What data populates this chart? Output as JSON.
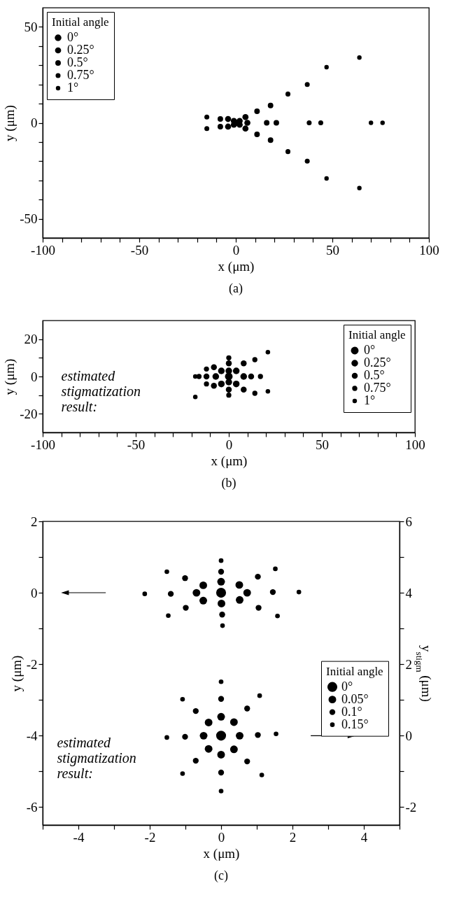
{
  "chart_data": [
    {
      "type": "bubble",
      "title": "(a)",
      "xlabel": "x (μm)",
      "ylabel": "y (μm)",
      "legend_title": "Initial angle",
      "legend": "top left",
      "marker": "circle",
      "xlim": [
        -100,
        100
      ],
      "xticks": [
        -100,
        {
          "value": -90,
          "label": null
        },
        {
          "value": -80,
          "label": null
        },
        {
          "value": -70,
          "label": null
        },
        {
          "value": -60,
          "label": null
        },
        -50,
        {
          "value": -40,
          "label": null
        },
        {
          "value": -30,
          "label": null
        },
        {
          "value": -20,
          "label": null
        },
        {
          "value": -10,
          "label": null
        },
        0,
        {
          "value": 10,
          "label": null
        },
        {
          "value": 20,
          "label": null
        },
        {
          "value": 30,
          "label": null
        },
        {
          "value": 40,
          "label": null
        },
        50,
        {
          "value": 60,
          "label": null
        },
        {
          "value": 70,
          "label": null
        },
        {
          "value": 80,
          "label": null
        },
        {
          "value": 90,
          "label": null
        },
        100
      ],
      "ylim": [
        -60,
        60
      ],
      "yticks": [
        -50,
        {
          "value": -40,
          "label": null
        },
        {
          "value": -30,
          "label": null
        },
        {
          "value": -20,
          "label": null
        },
        {
          "value": -10,
          "label": null
        },
        0,
        {
          "value": 10,
          "label": null
        },
        {
          "value": 20,
          "label": null
        },
        {
          "value": 30,
          "label": null
        },
        {
          "value": 40,
          "label": null
        },
        50
      ],
      "series": [
        {
          "name": "0°",
          "color": "#000000",
          "x": [
            0
          ],
          "values": [
            0
          ],
          "sizes": [
            1
          ]
        },
        {
          "name": "0.25°",
          "color": "#000000",
          "x": [
            -1,
            -1,
            2,
            2,
            -4,
            -4,
            5,
            5,
            6
          ],
          "values": [
            1,
            -1,
            1,
            -1,
            2,
            -2,
            3,
            -3,
            0
          ],
          "sizes": [
            0.85,
            0.85,
            0.85,
            0.85,
            0.85,
            0.85,
            0.85,
            0.85,
            0.85
          ]
        },
        {
          "name": "0.5°",
          "color": "#000000",
          "x": [
            -8,
            -8,
            11,
            11,
            18,
            18,
            16,
            21
          ],
          "values": [
            2,
            -2,
            6,
            -6,
            9,
            -9,
            0,
            0
          ],
          "sizes": [
            0.7,
            0.7,
            0.7,
            0.7,
            0.7,
            0.7,
            0.7,
            0.7
          ]
        },
        {
          "name": "0.75°",
          "color": "#000000",
          "x": [
            -15,
            -15,
            27,
            27,
            37,
            37,
            38,
            44
          ],
          "values": [
            3,
            -3,
            15,
            -15,
            20,
            -20,
            0,
            0
          ],
          "sizes": [
            0.55,
            0.55,
            0.55,
            0.55,
            0.55,
            0.55,
            0.55,
            0.55
          ]
        },
        {
          "name": "1°",
          "color": "#000000",
          "x": [
            47,
            47,
            64,
            64,
            70,
            76
          ],
          "values": [
            29,
            -29,
            34,
            -34,
            0,
            0
          ],
          "sizes": [
            0.45,
            0.45,
            0.45,
            0.45,
            0.45,
            0.45
          ]
        }
      ]
    },
    {
      "type": "bubble",
      "title": "(b)",
      "xlabel": "x (μm)",
      "ylabel": "y (μm)",
      "legend_title": "Initial angle",
      "legend": "top right",
      "marker": "circle",
      "annotations": [
        "estimated\nstigmatization\nresult:"
      ],
      "xlim": [
        -100,
        100
      ],
      "xticks": [
        -100,
        {
          "value": -90,
          "label": null
        },
        {
          "value": -80,
          "label": null
        },
        {
          "value": -70,
          "label": null
        },
        {
          "value": -60,
          "label": null
        },
        -50,
        {
          "value": -40,
          "label": null
        },
        {
          "value": -30,
          "label": null
        },
        {
          "value": -20,
          "label": null
        },
        {
          "value": -10,
          "label": null
        },
        0,
        {
          "value": 10,
          "label": null
        },
        {
          "value": 20,
          "label": null
        },
        {
          "value": 30,
          "label": null
        },
        {
          "value": 40,
          "label": null
        },
        50,
        {
          "value": 60,
          "label": null
        },
        {
          "value": 70,
          "label": null
        },
        {
          "value": 80,
          "label": null
        },
        {
          "value": 90,
          "label": null
        },
        100
      ],
      "ylim": [
        -30,
        30
      ],
      "yticks": [
        -20,
        {
          "value": -10,
          "label": null
        },
        0,
        {
          "value": 10,
          "label": null
        },
        20
      ],
      "series": [
        {
          "name": "0°",
          "color": "#000000",
          "x": [
            0
          ],
          "values": [
            0
          ],
          "sizes": [
            1
          ]
        },
        {
          "name": "0.25°",
          "color": "#000000",
          "x": [
            -4,
            4,
            -4,
            4,
            -7,
            8,
            0,
            0
          ],
          "values": [
            3,
            3,
            -4,
            -4,
            0,
            0,
            3,
            -3
          ],
          "sizes": [
            0.75,
            0.75,
            0.75,
            0.75,
            0.75,
            0.75,
            0.75,
            0.75
          ]
        },
        {
          "name": "0.5°",
          "color": "#000000",
          "x": [
            0,
            0,
            -8,
            -8,
            8,
            8,
            -12,
            12
          ],
          "values": [
            7,
            -7,
            5,
            -5,
            7,
            -7,
            0,
            0
          ],
          "sizes": [
            0.6,
            0.6,
            0.6,
            0.6,
            0.6,
            0.6,
            0.6,
            0.6
          ]
        },
        {
          "name": "0.75°",
          "color": "#000000",
          "x": [
            0,
            0,
            -16,
            17,
            14,
            14,
            -12,
            -12
          ],
          "values": [
            10,
            -10,
            0,
            0,
            9,
            -9,
            4,
            -4
          ],
          "sizes": [
            0.45,
            0.45,
            0.45,
            0.45,
            0.45,
            0.45,
            0.45,
            0.45
          ]
        },
        {
          "name": "1°",
          "color": "#000000",
          "x": [
            -18,
            21,
            21,
            -18
          ],
          "values": [
            0,
            13,
            -8,
            -11
          ],
          "sizes": [
            0.35,
            0.35,
            0.35,
            0.35
          ]
        }
      ]
    },
    {
      "type": "bubble",
      "title": "(c)",
      "xlabel": "x (μm)",
      "ylabel": "y (μm)",
      "y2label": "y$_{stigm}$ (μm)",
      "legend_title": "Initial angle",
      "legend": "right",
      "marker": "circle",
      "annotations": [
        "estimated\nstigmatization\nresult:"
      ],
      "xlim": [
        -5,
        5
      ],
      "xticks": [
        {
          "value": -5,
          "label": null
        },
        -4,
        {
          "value": -3,
          "label": null
        },
        -2,
        {
          "value": -1,
          "label": null
        },
        0,
        {
          "value": 1,
          "label": null
        },
        2,
        {
          "value": 3,
          "label": null
        },
        4,
        {
          "value": 5,
          "label": null
        }
      ],
      "ylim": [
        -6.5,
        2
      ],
      "yticks": [
        -6,
        {
          "value": -5,
          "label": null
        },
        -4,
        {
          "value": -3,
          "label": null
        },
        -2,
        {
          "value": -1,
          "label": null
        },
        0,
        {
          "value": 1,
          "label": null
        },
        2
      ],
      "y2lim": [
        -2.5,
        6
      ],
      "y2ticks": [
        -2,
        {
          "value": -1,
          "label": null
        },
        0,
        {
          "value": 1,
          "label": null
        },
        2,
        {
          "value": 3,
          "label": null
        },
        4,
        {
          "value": 5,
          "label": null
        },
        6
      ],
      "series": [
        {
          "name": "0°",
          "color": "#000000",
          "x": [
            0
          ],
          "values": [
            0
          ],
          "sizes": [
            1
          ]
        },
        {
          "name": "0.05°",
          "color": "#000000",
          "x": [
            -0.5,
            0.51,
            -0.5,
            0.52,
            -0.69,
            0.73,
            0,
            0.01
          ],
          "values": [
            0.21,
            0.22,
            -0.22,
            -0.2,
            0,
            0,
            0.31,
            -0.3
          ],
          "sizes": [
            0.6,
            0.6,
            0.6,
            0.6,
            0.6,
            0.6,
            0.6,
            0.6
          ]
        },
        {
          "name": "0.1°",
          "color": "#000000",
          "x": [
            -1.01,
            1.03,
            -0.99,
            1.05,
            -1.41,
            1.45,
            0,
            0.03
          ],
          "values": [
            0.41,
            0.45,
            -0.42,
            -0.42,
            -0.03,
            0.02,
            0.59,
            -0.61
          ],
          "sizes": [
            0.35,
            0.35,
            0.35,
            0.35,
            0.35,
            0.35,
            0.35,
            0.35
          ]
        },
        {
          "name": "0.15°",
          "color": "#000000",
          "x": [
            -1.52,
            1.52,
            -1.48,
            1.58,
            -2.14,
            2.18,
            0,
            0.04
          ],
          "values": [
            0.59,
            0.67,
            -0.64,
            -0.65,
            -0.03,
            0.02,
            0.9,
            -0.92
          ],
          "sizes": [
            0.22,
            0.22,
            0.22,
            0.22,
            0.22,
            0.22,
            0.22,
            0.22
          ]
        },
        {
          "axis": "y2",
          "color": "#000000",
          "x": [
            0
          ],
          "values": [
            0
          ],
          "sizes": [
            1
          ]
        },
        {
          "axis": "y2",
          "color": "#000000",
          "x": [
            -0.35,
            0.36,
            -0.49,
            0.52,
            0,
            0,
            -0.35,
            0.36
          ],
          "values": [
            0.37,
            0.38,
            0,
            0,
            0.53,
            -0.53,
            -0.37,
            -0.38
          ],
          "sizes": [
            0.6,
            0.6,
            0.6,
            0.6,
            0.6,
            0.6,
            0.6,
            0.6
          ]
        },
        {
          "axis": "y2",
          "color": "#000000",
          "x": [
            -0.71,
            0.73,
            -1.01,
            1.03,
            0,
            0,
            -0.71,
            0.73
          ],
          "values": [
            0.69,
            0.76,
            -0.03,
            0.02,
            1.03,
            -1.03,
            -0.7,
            -0.72
          ],
          "sizes": [
            0.35,
            0.35,
            0.35,
            0.35,
            0.35,
            0.35,
            0.35,
            0.35
          ]
        },
        {
          "axis": "y2",
          "color": "#000000",
          "x": [
            -1.08,
            1.08,
            -1.52,
            1.54,
            0,
            0,
            -1.08,
            1.14
          ],
          "values": [
            1.02,
            1.12,
            -0.05,
            0.05,
            1.51,
            -1.55,
            -1.06,
            -1.1
          ],
          "sizes": [
            0.22,
            0.22,
            0.22,
            0.22,
            0.22,
            0.22,
            0.22,
            0.22
          ]
        }
      ]
    }
  ]
}
